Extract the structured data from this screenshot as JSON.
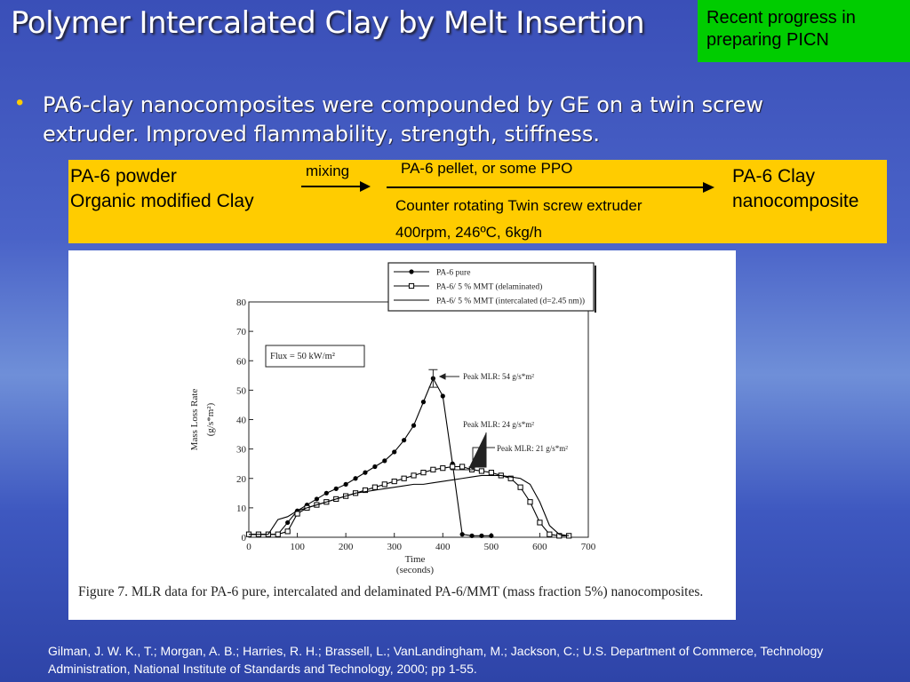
{
  "title": "Polymer Intercalated Clay by Melt Insertion",
  "callout": [
    "Recent progress in",
    "preparing PICN"
  ],
  "bullet": "PA6-clay nanocomposites were compounded by GE on a twin screw extruder. Improved flammability, strength, stiffness.",
  "process": {
    "inputs": [
      "PA-6 powder",
      "Organic modified Clay"
    ],
    "first_step": "mixing",
    "additive": "PA-6 pellet, or some PPO",
    "equipment": "Counter rotating Twin screw extruder",
    "conditions": "400rpm, 246ºC, 6kg/h",
    "output": [
      "PA-6 Clay",
      "nanocomposite"
    ]
  },
  "chart_data": {
    "type": "line",
    "xlabel": [
      "Time",
      "(seconds)"
    ],
    "ylabel": [
      "Mass Loss Rate",
      "(g/s*m²)"
    ],
    "x": [
      0,
      20,
      40,
      60,
      80,
      100,
      120,
      140,
      160,
      180,
      200,
      220,
      240,
      260,
      280,
      300,
      320,
      340,
      360,
      380,
      400,
      420,
      440,
      460,
      480,
      500,
      520,
      540,
      560,
      580,
      600,
      620,
      640,
      660
    ],
    "series": [
      {
        "name": "PA-6 pure",
        "color": "#000000",
        "marker": "filled-circle",
        "values": [
          1,
          1,
          1,
          1,
          5,
          9,
          11,
          13,
          15,
          16.5,
          18,
          20,
          22,
          24,
          26,
          29,
          33,
          38,
          46,
          54,
          48,
          25,
          1,
          0.5,
          0.5,
          0.5,
          null,
          null,
          null,
          null,
          null,
          null,
          null,
          null
        ]
      },
      {
        "name": "PA-6/ 5 % MMT (delaminated)",
        "color": "#000000",
        "marker": "open-square",
        "values": [
          1,
          1,
          1,
          1,
          2,
          8,
          10,
          11,
          12,
          13,
          14,
          15,
          16,
          17,
          18,
          19,
          20,
          21,
          22,
          23,
          23.5,
          24,
          24,
          23,
          22.5,
          22,
          21,
          20,
          17,
          12,
          5,
          1,
          0.5,
          0.5
        ]
      },
      {
        "name": "PA-6/ 5 % MMT (intercalated (d=2.45 nm))",
        "color": "#000000",
        "marker": "none",
        "values": [
          1,
          1,
          1,
          6,
          7,
          9,
          10,
          11,
          12,
          13,
          14,
          15,
          15.5,
          16,
          16.5,
          17,
          17.5,
          18,
          18,
          18.5,
          19,
          19.5,
          20,
          20.5,
          21,
          21,
          21,
          20.5,
          20,
          18,
          12,
          4,
          1,
          0.5
        ]
      }
    ],
    "xlim": [
      0,
      700
    ],
    "xticks": [
      0,
      100,
      200,
      300,
      400,
      500,
      600,
      700
    ],
    "ylim": [
      0,
      80
    ],
    "yticks": [
      0,
      10,
      20,
      30,
      40,
      50,
      60,
      70,
      80
    ],
    "legend": "top-right",
    "annotations": [
      "Flux = 50 kW/m²",
      "Peak MLR:  54 g/s*m²",
      "Peak MLR:  24 g/s*m²",
      "Peak MLR: 21 g/s*m²"
    ],
    "caption": "Figure 7. MLR data for PA-6 pure, intercalated and delaminated PA-6/MMT (mass fraction 5%) nanocomposites."
  },
  "citation": "Gilman, J. W. K., T.; Morgan, A. B.; Harries, R. H.; Brassell, L.; VanLandingham, M.; Jackson, C.; U.S. Department of Commerce, Technology Administration, National Institute of Standards and Technology, 2000; pp 1-55."
}
